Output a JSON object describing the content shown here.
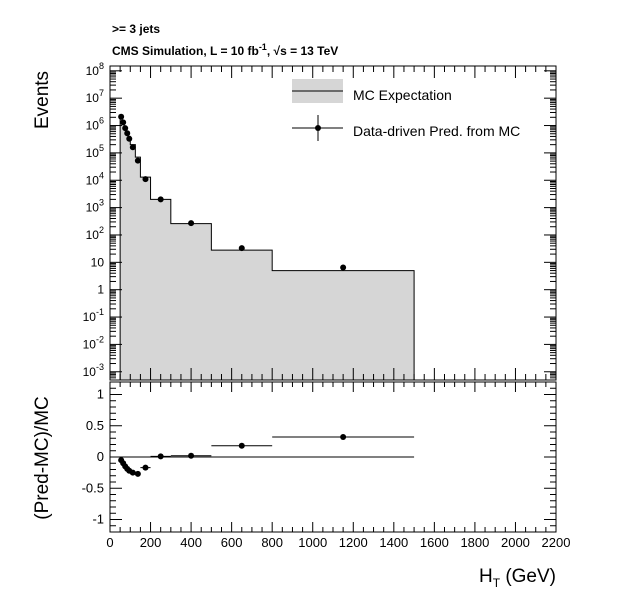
{
  "chart_data": [
    {
      "type": "line",
      "header": {
        "line1": ">= 3 jets",
        "line2_prefix": "CMS Simulation, L = 10 fb",
        "line2_exp": "-1",
        "line2_mid": ", ",
        "line2_sqrt": "√s",
        "line2_suffix": " = 13 TeV"
      },
      "ylabel": "Events",
      "yscale": "log",
      "ylim": [
        0.0005,
        150000000
      ],
      "y_ticks": [
        {
          "v": 100000000,
          "base": "10",
          "exp": "8"
        },
        {
          "v": 10000000,
          "base": "10",
          "exp": "7"
        },
        {
          "v": 1000000,
          "base": "10",
          "exp": "6"
        },
        {
          "v": 100000,
          "base": "10",
          "exp": "5"
        },
        {
          "v": 10000,
          "base": "10",
          "exp": "4"
        },
        {
          "v": 1000,
          "base": "10",
          "exp": "3"
        },
        {
          "v": 100,
          "base": "10",
          "exp": "2"
        },
        {
          "v": 10,
          "base": "10",
          "exp": ""
        },
        {
          "v": 1,
          "base": "1",
          "exp": ""
        },
        {
          "v": 0.1,
          "base": "10",
          "exp": "-1"
        },
        {
          "v": 0.01,
          "base": "10",
          "exp": "-2"
        },
        {
          "v": 0.001,
          "base": "10",
          "exp": "-3"
        }
      ],
      "legend": {
        "position": "top-right",
        "entries": [
          "MC Expectation",
          "Data-driven Pred. from MC"
        ]
      },
      "series": [
        {
          "name": "MC Expectation",
          "style": "filled-histogram",
          "fill": "#d6d6d6",
          "bins": [
            {
              "lo": 50,
              "hi": 60,
              "y": 2200000
            },
            {
              "lo": 60,
              "hi": 70,
              "y": 1400000
            },
            {
              "lo": 70,
              "hi": 80,
              "y": 900000
            },
            {
              "lo": 80,
              "hi": 90,
              "y": 600000
            },
            {
              "lo": 90,
              "hi": 100,
              "y": 400000
            },
            {
              "lo": 100,
              "hi": 125,
              "y": 200000
            },
            {
              "lo": 125,
              "hi": 150,
              "y": 70000
            },
            {
              "lo": 150,
              "hi": 200,
              "y": 13000
            },
            {
              "lo": 200,
              "hi": 300,
              "y": 2000
            },
            {
              "lo": 300,
              "hi": 500,
              "y": 260
            },
            {
              "lo": 500,
              "hi": 800,
              "y": 28
            },
            {
              "lo": 800,
              "hi": 1500,
              "y": 5
            }
          ]
        },
        {
          "name": "Data-driven Pred. from MC",
          "style": "markers",
          "color": "#000000",
          "points": [
            {
              "x": 55,
              "y": 2100000
            },
            {
              "x": 65,
              "y": 1300000
            },
            {
              "x": 75,
              "y": 800000
            },
            {
              "x": 85,
              "y": 520000
            },
            {
              "x": 95,
              "y": 330000
            },
            {
              "x": 112.5,
              "y": 160000
            },
            {
              "x": 137.5,
              "y": 52000
            },
            {
              "x": 175,
              "y": 11000
            },
            {
              "x": 250,
              "y": 2000
            },
            {
              "x": 400,
              "y": 270
            },
            {
              "x": 650,
              "y": 33
            },
            {
              "x": 1150,
              "y": 6.5
            }
          ]
        }
      ]
    },
    {
      "type": "scatter",
      "ylabel": "(Pred-MC)/MC",
      "xlabel_main": "H",
      "xlabel_sub": "T",
      "xlabel_unit": " (GeV)",
      "xlim": [
        0,
        2200
      ],
      "ylim": [
        -1.2,
        1.2
      ],
      "x_ticks": [
        "0",
        "200",
        "400",
        "600",
        "800",
        "1000",
        "1200",
        "1400",
        "1600",
        "1800",
        "2000",
        "2200"
      ],
      "y_ticks": [
        "1",
        "0.5",
        "0",
        "-0.5",
        "-1"
      ],
      "reference_line": {
        "y": 0,
        "x_range": [
          0,
          1500
        ]
      },
      "points": [
        {
          "x": 55,
          "xlo": 50,
          "xhi": 60,
          "y": -0.05
        },
        {
          "x": 65,
          "xlo": 60,
          "xhi": 70,
          "y": -0.1
        },
        {
          "x": 75,
          "xlo": 70,
          "xhi": 80,
          "y": -0.15
        },
        {
          "x": 85,
          "xlo": 80,
          "xhi": 90,
          "y": -0.19
        },
        {
          "x": 95,
          "xlo": 90,
          "xhi": 100,
          "y": -0.22
        },
        {
          "x": 112.5,
          "xlo": 100,
          "xhi": 125,
          "y": -0.25
        },
        {
          "x": 137.5,
          "xlo": 125,
          "xhi": 150,
          "y": -0.27
        },
        {
          "x": 175,
          "xlo": 150,
          "xhi": 200,
          "y": -0.17
        },
        {
          "x": 250,
          "xlo": 200,
          "xhi": 300,
          "y": 0.01
        },
        {
          "x": 400,
          "xlo": 300,
          "xhi": 500,
          "y": 0.02
        },
        {
          "x": 650,
          "xlo": 500,
          "xhi": 800,
          "y": 0.18
        },
        {
          "x": 1150,
          "xlo": 800,
          "xhi": 1500,
          "y": 0.32
        }
      ]
    }
  ]
}
